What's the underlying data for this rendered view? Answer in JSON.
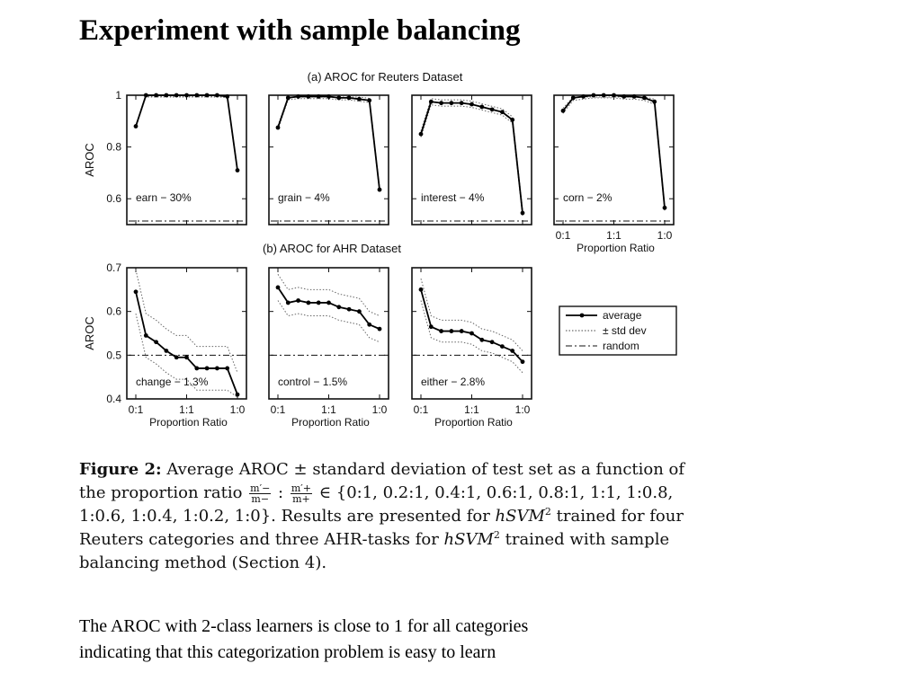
{
  "slide": {
    "title": "Experiment with sample balancing",
    "note_line1": "The AROC with 2-class learners is close to 1 for all categories",
    "note_line2": "indicating that this categorization problem is easy to learn"
  },
  "figure": {
    "caption": {
      "label": "Figure 2:",
      "t1": " Average AROC ± standard deviation of test set as a function of the proportion ratio ",
      "f1_num": "m′−",
      "f1_den": "m−",
      "sep": " : ",
      "f2_num": "m′+",
      "f2_den": "m+",
      "t2": " ∈ {0:1, 0.2:1, 0.4:1, 0.6:1, 0.8:1, 1:1, 1:0.8, 1:0.6, 1:0.4, 1:0.2, 1:0}.  Results are presented for ",
      "model": "hSVM",
      "exp": "2",
      "t3": " trained for four Reuters categories and three AHR-tasks for ",
      "t4": " trained with sample balancing method (Section 4)."
    },
    "legend": {
      "average": "average",
      "std": "± std dev",
      "random": "random"
    }
  },
  "chart_data": [
    {
      "type": "line",
      "title": "(a) AROC for Reuters Dataset",
      "ylabel": "AROC",
      "xlabel": "Proportion Ratio",
      "x_tick_labels": [
        "0:1",
        "1:1",
        "1:0"
      ],
      "y_ticks": [
        "0.6",
        "0.8",
        "1"
      ],
      "ylim": [
        0.5,
        1.0
      ],
      "random_level": 0.5,
      "panels": [
        {
          "label": "earn − 30%",
          "values": [
            0.88,
            1.0,
            1.0,
            1.0,
            1.0,
            1.0,
            1.0,
            1.0,
            1.0,
            0.995,
            0.71
          ],
          "std": 0.005
        },
        {
          "label": "grain − 4%",
          "values": [
            0.875,
            0.99,
            0.995,
            0.995,
            0.995,
            0.995,
            0.99,
            0.99,
            0.985,
            0.98,
            0.635
          ],
          "std": 0.008
        },
        {
          "label": "interest − 4%",
          "values": [
            0.85,
            0.975,
            0.97,
            0.97,
            0.97,
            0.965,
            0.955,
            0.945,
            0.935,
            0.905,
            0.545
          ],
          "std": 0.012
        },
        {
          "label": "corn − 2%",
          "values": [
            0.94,
            0.99,
            0.995,
            1.0,
            1.0,
            1.0,
            0.995,
            0.995,
            0.99,
            0.975,
            0.565
          ],
          "std": 0.01
        }
      ]
    },
    {
      "type": "line",
      "title": "(b) AROC for AHR Dataset",
      "ylabel": "AROC",
      "xlabel": "Proportion Ratio",
      "x_tick_labels": [
        "0:1",
        "1:1",
        "1:0"
      ],
      "y_ticks": [
        "0.4",
        "0.5",
        "0.6",
        "0.7"
      ],
      "ylim": [
        0.4,
        0.7
      ],
      "random_level": 0.5,
      "panels": [
        {
          "label": "change − 1.3%",
          "values": [
            0.645,
            0.545,
            0.53,
            0.51,
            0.495,
            0.495,
            0.47,
            0.47,
            0.47,
            0.47,
            0.41
          ],
          "std": 0.05
        },
        {
          "label": "control − 1.5%",
          "values": [
            0.655,
            0.62,
            0.625,
            0.62,
            0.62,
            0.62,
            0.61,
            0.605,
            0.6,
            0.57,
            0.56
          ],
          "std": 0.03
        },
        {
          "label": "either − 2.8%",
          "values": [
            0.65,
            0.565,
            0.555,
            0.555,
            0.555,
            0.55,
            0.535,
            0.53,
            0.52,
            0.51,
            0.485
          ],
          "std": 0.025
        }
      ]
    }
  ]
}
